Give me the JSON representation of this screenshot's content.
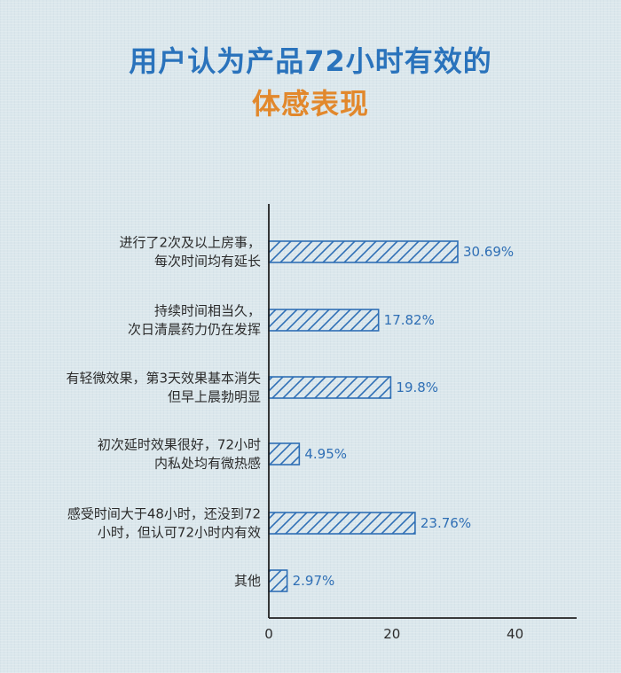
{
  "title": {
    "line1": "用户认为产品72小时有效的",
    "line2": "体感表现"
  },
  "colors": {
    "title_blue": "#2a73bc",
    "title_orange": "#e2882c",
    "bar_stroke": "#2f6fb5",
    "axis": "#222222"
  },
  "chart_data": {
    "type": "bar",
    "orientation": "horizontal",
    "title": "用户认为产品72小时有效的体感表现",
    "categories": [
      [
        "进行了2次及以上房事，",
        "每次时间均有延长"
      ],
      [
        "持续时间相当久，",
        "次日清晨药力仍在发挥"
      ],
      [
        "有轻微效果，第3天效果基本消失",
        "但早上晨勃明显"
      ],
      [
        "初次延时效果很好，72小时",
        "内私处均有微热感"
      ],
      [
        "感受时间大于48小时，还没到72",
        "小时，但认可72小时内有效"
      ],
      [
        "其他"
      ]
    ],
    "values": [
      30.69,
      17.82,
      19.8,
      4.95,
      23.76,
      2.97
    ],
    "value_labels": [
      "30.69%",
      "17.82%",
      "19.8%",
      "4.95%",
      "23.76%",
      "2.97%"
    ],
    "xlim": [
      0,
      50
    ],
    "xticks": [
      0,
      20,
      40
    ],
    "xtick_labels": [
      "0",
      "20",
      "40"
    ],
    "grid": false,
    "bar_fill": "hatched"
  }
}
